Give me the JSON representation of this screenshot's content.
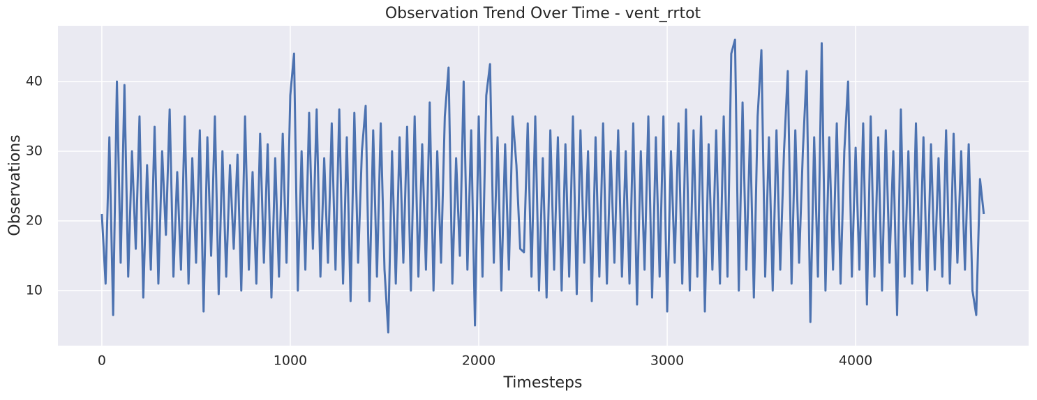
{
  "chart_data": {
    "type": "line",
    "title": "Observation Trend Over Time - vent_rrtot",
    "xlabel": "Timesteps",
    "ylabel": "Observations",
    "x": [
      0,
      20,
      40,
      60,
      80,
      100,
      120,
      140,
      160,
      180,
      200,
      220,
      240,
      260,
      280,
      300,
      320,
      340,
      360,
      380,
      400,
      420,
      440,
      460,
      480,
      500,
      520,
      540,
      560,
      580,
      600,
      620,
      640,
      660,
      680,
      700,
      720,
      740,
      760,
      780,
      800,
      820,
      840,
      860,
      880,
      900,
      920,
      940,
      960,
      980,
      1000,
      1020,
      1040,
      1060,
      1080,
      1100,
      1120,
      1140,
      1160,
      1180,
      1200,
      1220,
      1240,
      1260,
      1280,
      1300,
      1320,
      1340,
      1360,
      1380,
      1400,
      1420,
      1440,
      1460,
      1480,
      1500,
      1520,
      1540,
      1560,
      1580,
      1600,
      1620,
      1640,
      1660,
      1680,
      1700,
      1720,
      1740,
      1760,
      1780,
      1800,
      1820,
      1840,
      1860,
      1880,
      1900,
      1920,
      1940,
      1960,
      1980,
      2000,
      2020,
      2040,
      2060,
      2080,
      2100,
      2120,
      2140,
      2160,
      2180,
      2200,
      2220,
      2240,
      2260,
      2280,
      2300,
      2320,
      2340,
      2360,
      2380,
      2400,
      2420,
      2440,
      2460,
      2480,
      2500,
      2520,
      2540,
      2560,
      2580,
      2600,
      2620,
      2640,
      2660,
      2680,
      2700,
      2720,
      2740,
      2760,
      2780,
      2800,
      2820,
      2840,
      2860,
      2880,
      2900,
      2920,
      2940,
      2960,
      2980,
      3000,
      3020,
      3040,
      3060,
      3080,
      3100,
      3120,
      3140,
      3160,
      3180,
      3200,
      3220,
      3240,
      3260,
      3280,
      3300,
      3320,
      3340,
      3360,
      3380,
      3400,
      3420,
      3440,
      3460,
      3480,
      3500,
      3520,
      3540,
      3560,
      3580,
      3600,
      3620,
      3640,
      3660,
      3680,
      3700,
      3720,
      3740,
      3760,
      3780,
      3800,
      3820,
      3840,
      3860,
      3880,
      3900,
      3920,
      3940,
      3960,
      3980,
      4000,
      4020,
      4040,
      4060,
      4080,
      4100,
      4120,
      4140,
      4160,
      4180,
      4200,
      4220,
      4240,
      4260,
      4280,
      4300,
      4320,
      4340,
      4360,
      4380,
      4400,
      4420,
      4440,
      4460,
      4480,
      4500,
      4520,
      4540,
      4560,
      4580,
      4600,
      4620,
      4640,
      4660,
      4680
    ],
    "series": [
      {
        "name": "vent_rrtot",
        "color": "#4c72b0",
        "values": [
          21,
          11,
          32,
          6.5,
          40,
          14,
          39.5,
          12,
          30,
          16,
          35,
          9,
          28,
          13,
          33.5,
          11,
          30,
          18,
          36,
          12,
          27,
          13,
          35,
          11,
          29,
          14,
          33,
          7,
          32,
          15,
          35,
          9.5,
          30,
          12,
          28,
          16,
          29.5,
          10,
          35,
          13,
          27,
          11,
          32.5,
          14,
          31,
          9,
          29,
          12,
          32.5,
          14,
          38,
          44,
          10,
          30,
          13,
          35.5,
          16,
          36,
          12,
          29,
          14,
          34,
          13,
          36,
          11,
          32,
          8.5,
          35.5,
          14,
          30,
          36.5,
          8.5,
          33,
          12,
          34,
          13,
          4,
          30,
          11,
          32,
          14,
          33.5,
          10,
          35,
          12,
          31,
          13,
          37,
          10,
          30,
          14,
          35,
          42,
          11,
          29,
          15,
          40,
          13,
          33,
          5,
          35,
          12,
          38,
          42.5,
          14,
          32,
          10,
          31,
          13,
          35,
          28,
          16,
          15.5,
          34,
          12,
          35,
          10,
          29,
          9,
          33,
          13,
          32,
          10,
          31,
          12,
          35,
          9.5,
          33,
          14,
          30,
          8.5,
          32,
          12,
          34,
          11,
          30,
          14,
          33,
          12,
          30,
          11,
          34,
          8,
          30,
          13,
          35,
          9,
          32,
          12,
          35,
          7,
          30,
          14,
          34,
          11,
          36,
          10,
          33,
          12,
          35,
          7,
          31,
          13,
          33,
          11,
          35,
          12,
          44,
          46,
          10,
          37,
          13,
          33,
          9,
          35,
          44.5,
          12,
          32,
          10,
          33,
          13,
          30,
          41.5,
          11,
          33,
          14,
          30,
          41.5,
          5.5,
          32,
          12,
          45.5,
          10,
          32,
          13,
          34,
          11,
          30,
          40,
          12,
          30.5,
          13,
          34,
          8,
          35,
          12,
          32,
          10,
          33,
          14,
          30,
          6.5,
          36,
          12,
          30,
          11,
          34,
          13,
          32,
          10,
          31,
          13,
          29,
          12,
          33,
          11,
          32.5,
          14,
          30,
          13,
          31,
          10,
          6.5,
          26,
          21
        ]
      }
    ],
    "xlim": [
      -233,
      4918
    ],
    "ylim": [
      2.1,
      48
    ],
    "xticks": [
      0,
      1000,
      2000,
      3000,
      4000
    ],
    "yticks": [
      10,
      20,
      30,
      40
    ],
    "grid": true
  }
}
